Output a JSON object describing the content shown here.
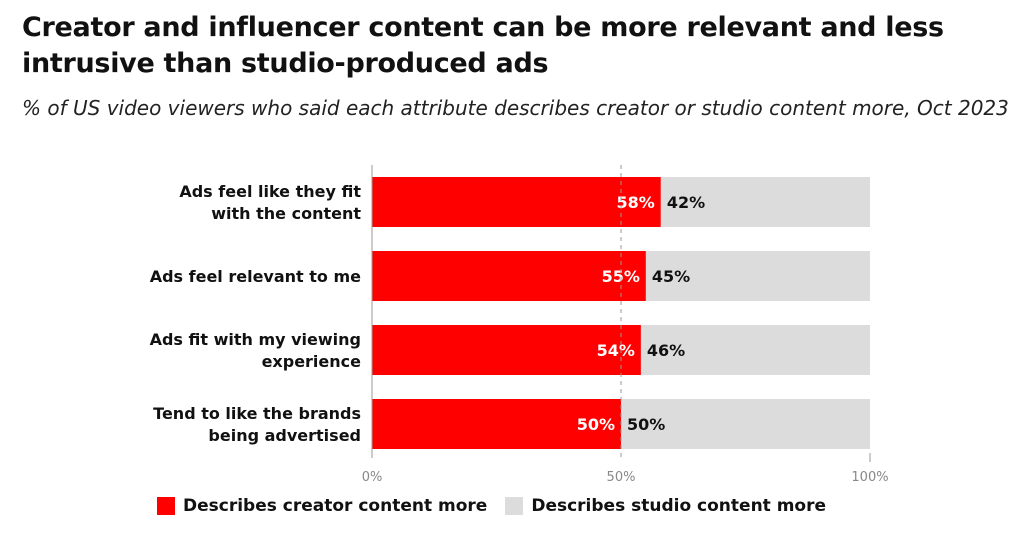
{
  "title": "Creator and influencer content can be more relevant and less intrusive than studio-produced ads",
  "subtitle": "% of US video viewers who said each attribute describes creator or studio content more, Oct 2023",
  "chart_data": {
    "type": "bar",
    "orientation": "horizontal",
    "stacked": true,
    "categories": [
      [
        "Ads feel like they fit",
        "with the content"
      ],
      [
        "Ads feel relevant to me"
      ],
      [
        "Ads fit with my viewing",
        "experience"
      ],
      [
        "Tend to like the brands",
        "being advertised"
      ]
    ],
    "series": [
      {
        "name": "Describes creator content more",
        "color": "#ff0000",
        "values": [
          58,
          55,
          54,
          50
        ]
      },
      {
        "name": "Describes studio content more",
        "color": "#dcdcdc",
        "values": [
          42,
          45,
          46,
          50
        ]
      }
    ],
    "xlim": [
      0,
      100
    ],
    "xticks": [
      "0%",
      "50%",
      "100%"
    ],
    "reference_line": 50,
    "legend": "bottom"
  }
}
